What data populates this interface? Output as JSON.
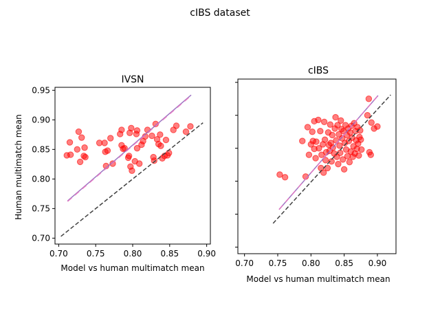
{
  "figure": {
    "suptitle": "cIBS dataset"
  },
  "colors": {
    "points": "#ff0000",
    "fit_line": "#9467bd",
    "fit_line_dashed": "#e377c2",
    "identity_line": "#404040"
  },
  "chart_data": [
    {
      "type": "scatter",
      "title": "IVSN",
      "xlabel": "Model vs human multimatch mean",
      "ylabel": "Human multimatch mean",
      "xlim": [
        0.695,
        0.905
      ],
      "ylim": [
        0.69,
        0.955
      ],
      "xticks": [
        0.7,
        0.75,
        0.8,
        0.85,
        0.9
      ],
      "yticks": [
        0.7,
        0.75,
        0.8,
        0.85,
        0.9,
        0.95
      ],
      "xtick_labels": [
        "0.70",
        "0.75",
        "0.80",
        "0.85",
        "0.90"
      ],
      "ytick_labels": [
        "0.70",
        "0.75",
        "0.80",
        "0.85",
        "0.90",
        "0.95"
      ],
      "grid": false,
      "reference_lines": [
        {
          "kind": "identity",
          "style": "dashed",
          "x": [
            0.703,
            0.895
          ],
          "y": [
            0.703,
            0.895
          ]
        },
        {
          "kind": "fit",
          "style": "solid",
          "x": [
            0.712,
            0.879
          ],
          "y": [
            0.763,
            0.942
          ]
        },
        {
          "kind": "fit",
          "style": "dashed",
          "x": [
            0.712,
            0.879
          ],
          "y": [
            0.762,
            0.941
          ]
        }
      ],
      "points": [
        {
          "x": 0.711,
          "y": 0.84
        },
        {
          "x": 0.715,
          "y": 0.862
        },
        {
          "x": 0.716,
          "y": 0.841
        },
        {
          "x": 0.725,
          "y": 0.85
        },
        {
          "x": 0.727,
          "y": 0.88
        },
        {
          "x": 0.729,
          "y": 0.829
        },
        {
          "x": 0.731,
          "y": 0.87
        },
        {
          "x": 0.734,
          "y": 0.839
        },
        {
          "x": 0.735,
          "y": 0.853
        },
        {
          "x": 0.736,
          "y": 0.837
        },
        {
          "x": 0.755,
          "y": 0.861
        },
        {
          "x": 0.762,
          "y": 0.861
        },
        {
          "x": 0.763,
          "y": 0.846
        },
        {
          "x": 0.764,
          "y": 0.822
        },
        {
          "x": 0.766,
          "y": 0.848
        },
        {
          "x": 0.77,
          "y": 0.869
        },
        {
          "x": 0.773,
          "y": 0.826
        },
        {
          "x": 0.783,
          "y": 0.876
        },
        {
          "x": 0.785,
          "y": 0.883
        },
        {
          "x": 0.785,
          "y": 0.857
        },
        {
          "x": 0.787,
          "y": 0.851
        },
        {
          "x": 0.789,
          "y": 0.852
        },
        {
          "x": 0.794,
          "y": 0.836
        },
        {
          "x": 0.795,
          "y": 0.839
        },
        {
          "x": 0.796,
          "y": 0.878
        },
        {
          "x": 0.797,
          "y": 0.821
        },
        {
          "x": 0.798,
          "y": 0.886
        },
        {
          "x": 0.799,
          "y": 0.814
        },
        {
          "x": 0.803,
          "y": 0.83
        },
        {
          "x": 0.805,
          "y": 0.876
        },
        {
          "x": 0.806,
          "y": 0.882
        },
        {
          "x": 0.806,
          "y": 0.852
        },
        {
          "x": 0.809,
          "y": 0.826
        },
        {
          "x": 0.812,
          "y": 0.858
        },
        {
          "x": 0.814,
          "y": 0.864
        },
        {
          "x": 0.817,
          "y": 0.872
        },
        {
          "x": 0.82,
          "y": 0.883
        },
        {
          "x": 0.826,
          "y": 0.873
        },
        {
          "x": 0.828,
          "y": 0.837
        },
        {
          "x": 0.829,
          "y": 0.831
        },
        {
          "x": 0.831,
          "y": 0.893
        },
        {
          "x": 0.833,
          "y": 0.867
        },
        {
          "x": 0.835,
          "y": 0.859
        },
        {
          "x": 0.837,
          "y": 0.875
        },
        {
          "x": 0.838,
          "y": 0.856
        },
        {
          "x": 0.84,
          "y": 0.835
        },
        {
          "x": 0.843,
          "y": 0.839
        },
        {
          "x": 0.845,
          "y": 0.866
        },
        {
          "x": 0.847,
          "y": 0.84
        },
        {
          "x": 0.849,
          "y": 0.844
        },
        {
          "x": 0.855,
          "y": 0.883
        },
        {
          "x": 0.859,
          "y": 0.89
        },
        {
          "x": 0.872,
          "y": 0.88
        },
        {
          "x": 0.878,
          "y": 0.889
        }
      ]
    },
    {
      "type": "scatter",
      "title": "cIBS",
      "xlabel": "Model vs human multimatch mean",
      "ylabel": "",
      "xlim": [
        0.69,
        0.928
      ],
      "ylim": [
        0.69,
        0.955
      ],
      "xticks": [
        0.7,
        0.75,
        0.8,
        0.85,
        0.9
      ],
      "yticks": [
        0.7,
        0.75,
        0.8,
        0.85,
        0.9,
        0.95
      ],
      "xtick_labels": [
        "0.70",
        "0.75",
        "0.80",
        "0.85",
        "0.90"
      ],
      "ytick_labels": [
        "",
        "",
        "",
        "",
        "",
        ""
      ],
      "grid": false,
      "reference_lines": [
        {
          "kind": "identity",
          "style": "dashed",
          "x": [
            0.743,
            0.92
          ],
          "y": [
            0.736,
            0.931
          ]
        },
        {
          "kind": "fit",
          "style": "solid",
          "x": [
            0.752,
            0.901
          ],
          "y": [
            0.757,
            0.93
          ]
        },
        {
          "kind": "fit",
          "style": "dashed",
          "x": [
            0.752,
            0.901
          ],
          "y": [
            0.757,
            0.93
          ]
        }
      ],
      "points": [
        {
          "x": 0.753,
          "y": 0.81
        },
        {
          "x": 0.761,
          "y": 0.806
        },
        {
          "x": 0.787,
          "y": 0.861
        },
        {
          "x": 0.792,
          "y": 0.807
        },
        {
          "x": 0.795,
          "y": 0.882
        },
        {
          "x": 0.797,
          "y": 0.84
        },
        {
          "x": 0.8,
          "y": 0.856
        },
        {
          "x": 0.802,
          "y": 0.875
        },
        {
          "x": 0.803,
          "y": 0.861
        },
        {
          "x": 0.805,
          "y": 0.891
        },
        {
          "x": 0.805,
          "y": 0.849
        },
        {
          "x": 0.807,
          "y": 0.835
        },
        {
          "x": 0.808,
          "y": 0.86
        },
        {
          "x": 0.811,
          "y": 0.893
        },
        {
          "x": 0.812,
          "y": 0.85
        },
        {
          "x": 0.814,
          "y": 0.876
        },
        {
          "x": 0.815,
          "y": 0.82
        },
        {
          "x": 0.816,
          "y": 0.84
        },
        {
          "x": 0.818,
          "y": 0.856
        },
        {
          "x": 0.819,
          "y": 0.813
        },
        {
          "x": 0.82,
          "y": 0.89
        },
        {
          "x": 0.821,
          "y": 0.863
        },
        {
          "x": 0.822,
          "y": 0.832
        },
        {
          "x": 0.823,
          "y": 0.844
        },
        {
          "x": 0.825,
          "y": 0.82
        },
        {
          "x": 0.826,
          "y": 0.874
        },
        {
          "x": 0.827,
          "y": 0.855
        },
        {
          "x": 0.828,
          "y": 0.846
        },
        {
          "x": 0.829,
          "y": 0.886
        },
        {
          "x": 0.83,
          "y": 0.858
        },
        {
          "x": 0.831,
          "y": 0.83
        },
        {
          "x": 0.832,
          "y": 0.87
        },
        {
          "x": 0.833,
          "y": 0.851
        },
        {
          "x": 0.835,
          "y": 0.842
        },
        {
          "x": 0.836,
          "y": 0.88
        },
        {
          "x": 0.837,
          "y": 0.897
        },
        {
          "x": 0.838,
          "y": 0.862
        },
        {
          "x": 0.839,
          "y": 0.837
        },
        {
          "x": 0.84,
          "y": 0.885
        },
        {
          "x": 0.841,
          "y": 0.826
        },
        {
          "x": 0.842,
          "y": 0.871
        },
        {
          "x": 0.843,
          "y": 0.854
        },
        {
          "x": 0.844,
          "y": 0.843
        },
        {
          "x": 0.845,
          "y": 0.892
        },
        {
          "x": 0.846,
          "y": 0.879
        },
        {
          "x": 0.847,
          "y": 0.865
        },
        {
          "x": 0.848,
          "y": 0.833
        },
        {
          "x": 0.849,
          "y": 0.876
        },
        {
          "x": 0.85,
          "y": 0.818
        },
        {
          "x": 0.851,
          "y": 0.858
        },
        {
          "x": 0.852,
          "y": 0.885
        },
        {
          "x": 0.853,
          "y": 0.848
        },
        {
          "x": 0.854,
          "y": 0.87
        },
        {
          "x": 0.855,
          "y": 0.838
        },
        {
          "x": 0.856,
          "y": 0.88
        },
        {
          "x": 0.857,
          "y": 0.861
        },
        {
          "x": 0.858,
          "y": 0.829
        },
        {
          "x": 0.859,
          "y": 0.874
        },
        {
          "x": 0.86,
          "y": 0.845
        },
        {
          "x": 0.861,
          "y": 0.884
        },
        {
          "x": 0.862,
          "y": 0.866
        },
        {
          "x": 0.863,
          "y": 0.837
        },
        {
          "x": 0.864,
          "y": 0.853
        },
        {
          "x": 0.865,
          "y": 0.888
        },
        {
          "x": 0.866,
          "y": 0.842
        },
        {
          "x": 0.867,
          "y": 0.876
        },
        {
          "x": 0.868,
          "y": 0.862
        },
        {
          "x": 0.869,
          "y": 0.849
        },
        {
          "x": 0.87,
          "y": 0.882
        },
        {
          "x": 0.871,
          "y": 0.857
        },
        {
          "x": 0.872,
          "y": 0.839
        },
        {
          "x": 0.873,
          "y": 0.867
        },
        {
          "x": 0.874,
          "y": 0.877
        },
        {
          "x": 0.875,
          "y": 0.863
        },
        {
          "x": 0.876,
          "y": 0.848
        },
        {
          "x": 0.885,
          "y": 0.9
        },
        {
          "x": 0.887,
          "y": 0.925
        },
        {
          "x": 0.888,
          "y": 0.844
        },
        {
          "x": 0.89,
          "y": 0.84
        },
        {
          "x": 0.891,
          "y": 0.889
        },
        {
          "x": 0.895,
          "y": 0.88
        },
        {
          "x": 0.9,
          "y": 0.883
        }
      ]
    }
  ]
}
